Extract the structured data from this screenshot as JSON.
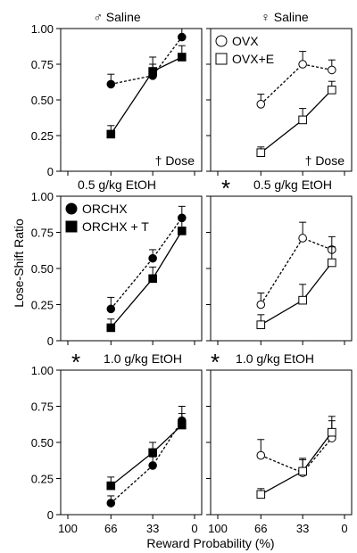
{
  "figure": {
    "ylabel": "Lose-Shift Ratio",
    "xlabel": "Reward Probability (%)"
  },
  "chart_data": [
    {
      "type": "line",
      "title": "♂ Saline",
      "annotation": "† Dose",
      "x": [
        66,
        33,
        10
      ],
      "xticks": [
        "100",
        "66",
        "33",
        "0"
      ],
      "xlim": [
        100,
        0
      ],
      "ylim": [
        0,
        1
      ],
      "yticks": [
        "0",
        "0.25",
        "0.50",
        "0.75",
        "1.00"
      ],
      "series": [
        {
          "name": "",
          "marker": "filled-circle",
          "dash": true,
          "values": [
            0.61,
            0.67,
            0.94
          ],
          "err": [
            0.07,
            0.08,
            0.06
          ]
        },
        {
          "name": "",
          "marker": "filled-square",
          "dash": false,
          "values": [
            0.26,
            0.7,
            0.8
          ],
          "err": [
            0.06,
            0.1,
            0.08
          ]
        }
      ]
    },
    {
      "type": "line",
      "title": "♀ Saline",
      "annotation": "† Dose",
      "legend_position": "top-left",
      "x": [
        66,
        33,
        10
      ],
      "xticks": [
        "100",
        "66",
        "33",
        "0"
      ],
      "xlim": [
        100,
        0
      ],
      "ylim": [
        0,
        1
      ],
      "series": [
        {
          "name": "OVX",
          "marker": "open-circle",
          "dash": true,
          "values": [
            0.47,
            0.75,
            0.71
          ],
          "err": [
            0.07,
            0.09,
            0.07
          ]
        },
        {
          "name": "OVX+E",
          "marker": "open-square",
          "dash": false,
          "values": [
            0.13,
            0.36,
            0.57
          ],
          "err": [
            0.04,
            0.08,
            0.06
          ]
        }
      ]
    },
    {
      "type": "line",
      "title": "0.5 g/kg EtOH",
      "legend_position": "top-left",
      "x": [
        66,
        33,
        10
      ],
      "xticks": [
        "100",
        "66",
        "33",
        "0"
      ],
      "xlim": [
        100,
        0
      ],
      "ylim": [
        0,
        1
      ],
      "yticks": [
        "0",
        "0.25",
        "0.50",
        "0.75",
        "1.00"
      ],
      "series": [
        {
          "name": "ORCHX",
          "marker": "filled-circle",
          "dash": true,
          "values": [
            0.22,
            0.57,
            0.85
          ],
          "err": [
            0.08,
            0.06,
            0.08
          ]
        },
        {
          "name": "ORCHX + T",
          "marker": "filled-square",
          "dash": false,
          "values": [
            0.09,
            0.43,
            0.76
          ],
          "err": [
            0.06,
            0.08,
            0.08
          ]
        }
      ]
    },
    {
      "type": "line",
      "title": "0.5 g/kg EtOH",
      "marker_symbol": "*",
      "x": [
        66,
        33,
        10
      ],
      "xticks": [
        "100",
        "66",
        "33",
        "0"
      ],
      "xlim": [
        100,
        0
      ],
      "ylim": [
        0,
        1
      ],
      "series": [
        {
          "name": "",
          "marker": "open-circle",
          "dash": true,
          "values": [
            0.25,
            0.71,
            0.63
          ],
          "err": [
            0.08,
            0.11,
            0.09
          ]
        },
        {
          "name": "",
          "marker": "open-square",
          "dash": false,
          "values": [
            0.11,
            0.28,
            0.54
          ],
          "err": [
            0.07,
            0.11,
            0.11
          ]
        }
      ]
    },
    {
      "type": "line",
      "title": "1.0 g/kg EtOH",
      "marker_symbol": "*",
      "x": [
        66,
        33,
        10
      ],
      "xticks": [
        "100",
        "66",
        "33",
        "0"
      ],
      "xlim": [
        100,
        0
      ],
      "ylim": [
        0,
        1
      ],
      "yticks": [
        "0",
        "0.25",
        "0.50",
        "0.75",
        "1.00"
      ],
      "series": [
        {
          "name": "",
          "marker": "filled-circle",
          "dash": true,
          "values": [
            0.08,
            0.34,
            0.65
          ],
          "err": [
            0.05,
            0.06,
            0.1
          ]
        },
        {
          "name": "",
          "marker": "filled-square",
          "dash": false,
          "values": [
            0.2,
            0.43,
            0.62
          ],
          "err": [
            0.06,
            0.07,
            0.08
          ]
        }
      ]
    },
    {
      "type": "line",
      "title": "1.0 g/kg EtOH",
      "marker_symbol": "*",
      "x": [
        66,
        33,
        10
      ],
      "xticks": [
        "100",
        "66",
        "33",
        "0"
      ],
      "xlim": [
        100,
        0
      ],
      "ylim": [
        0,
        1
      ],
      "series": [
        {
          "name": "",
          "marker": "open-circle",
          "dash": true,
          "values": [
            0.41,
            0.29,
            0.53
          ],
          "err": [
            0.11,
            0.09,
            0.12
          ]
        },
        {
          "name": "",
          "marker": "open-square",
          "dash": false,
          "values": [
            0.14,
            0.3,
            0.57
          ],
          "err": [
            0.04,
            0.09,
            0.11
          ]
        }
      ]
    }
  ]
}
